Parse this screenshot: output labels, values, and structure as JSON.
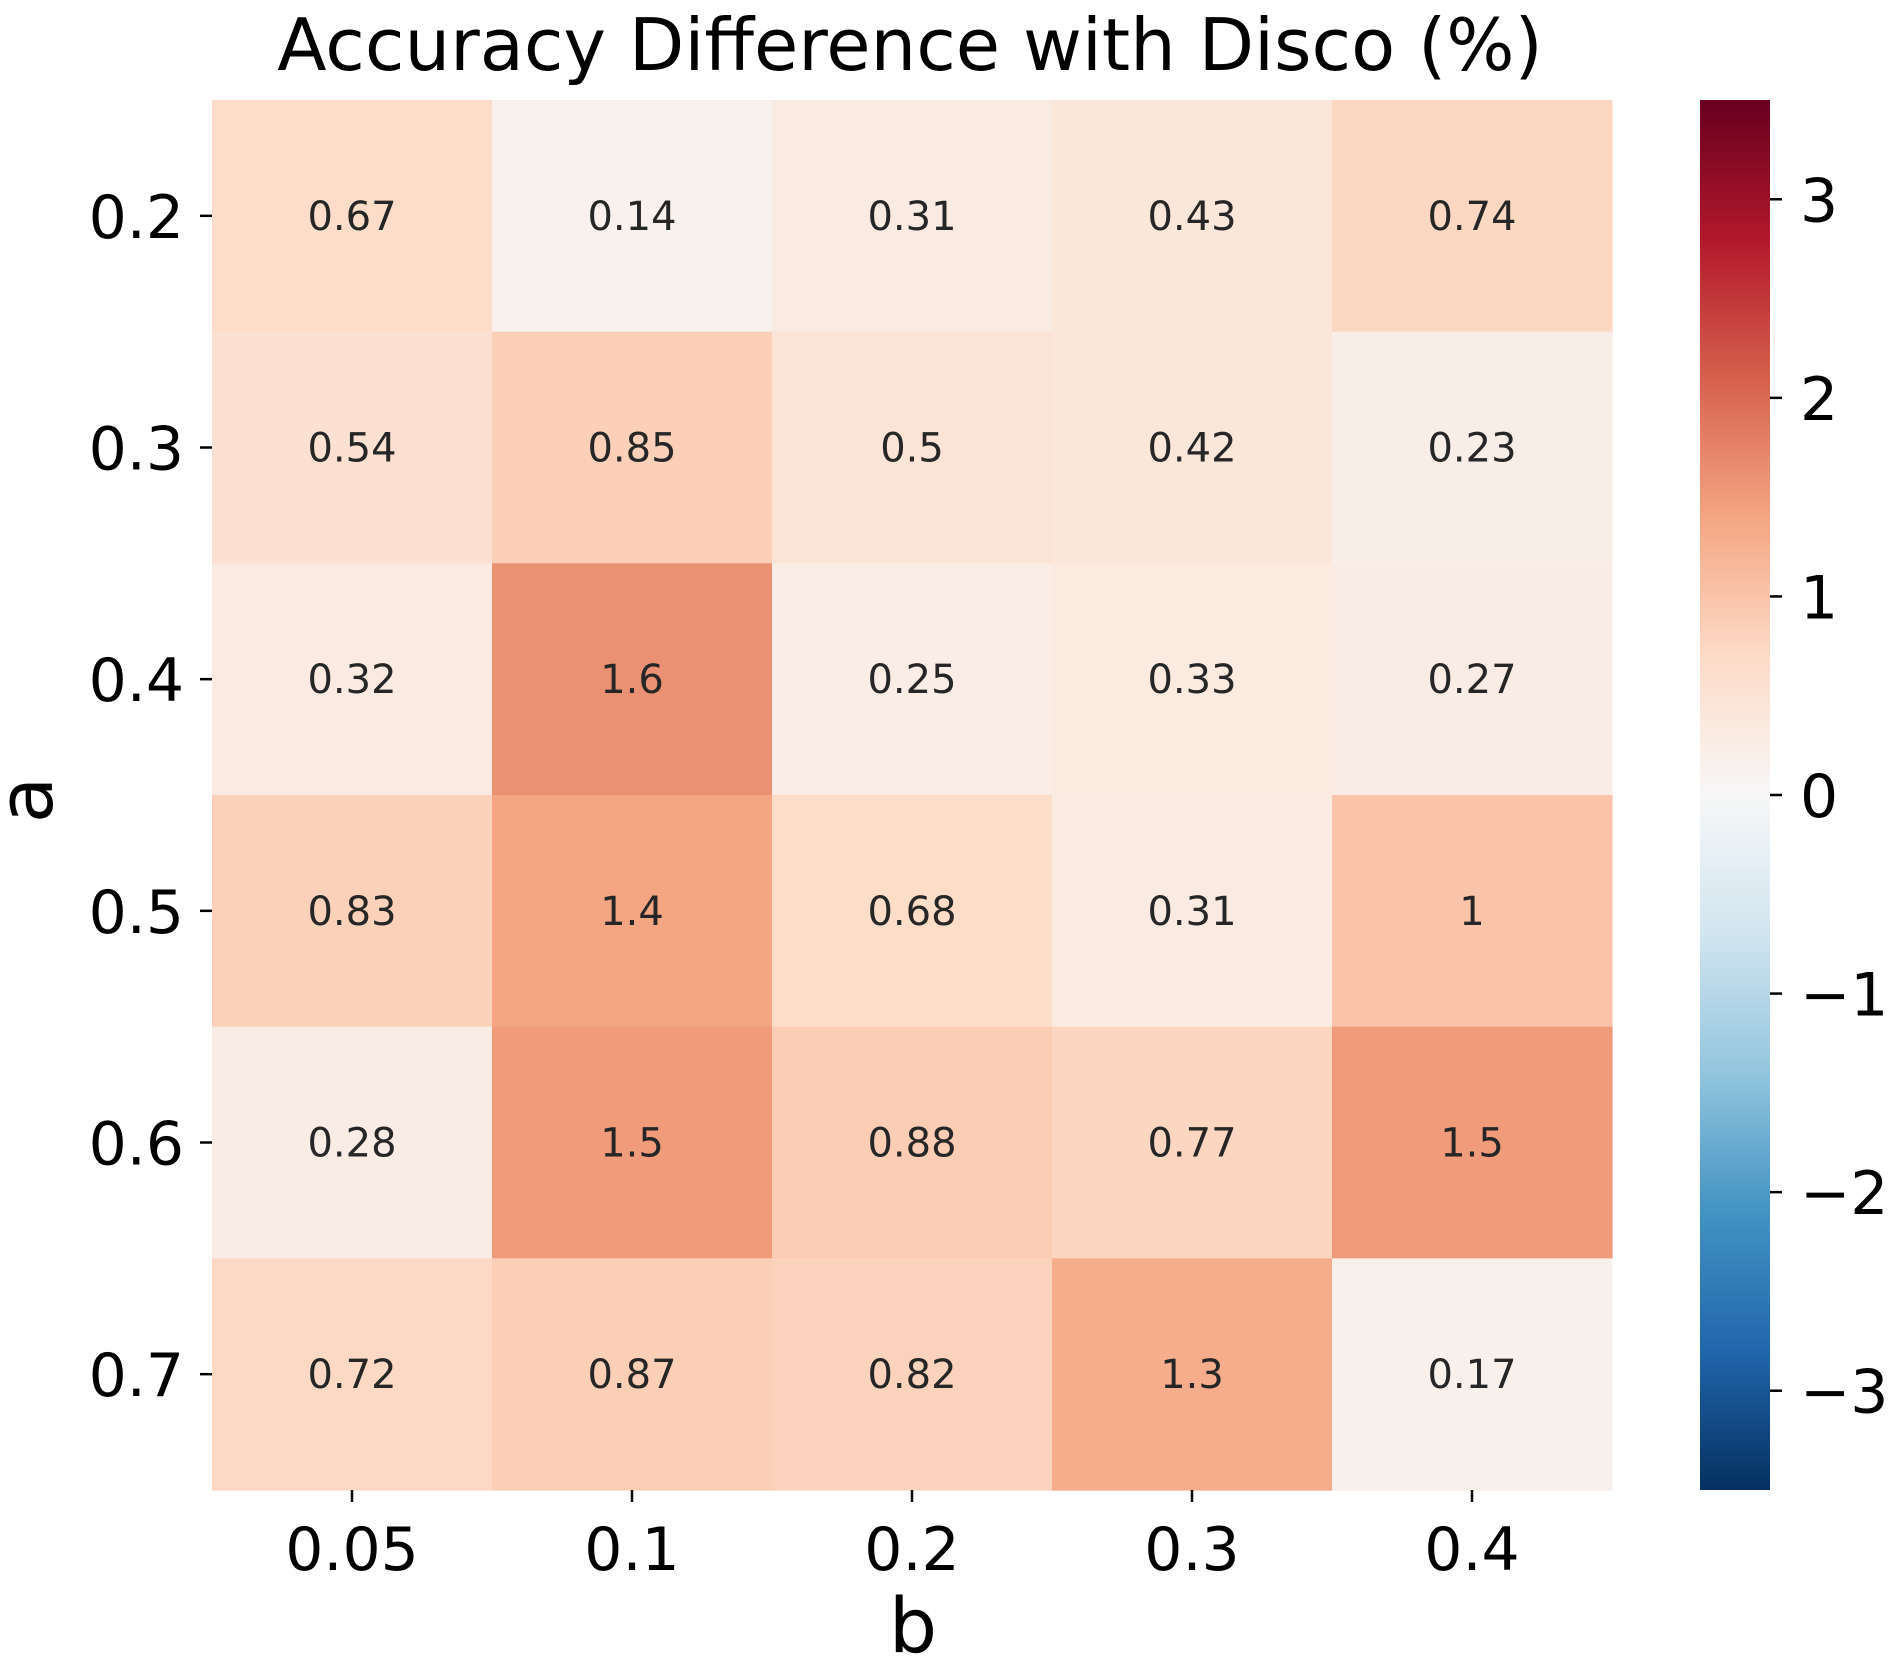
{
  "chart_data": {
    "type": "heatmap",
    "title": "Accuracy Difference with Disco (%)",
    "xlabel": "b",
    "ylabel": "a",
    "x_categories": [
      "0.05",
      "0.1",
      "0.2",
      "0.3",
      "0.4"
    ],
    "y_categories": [
      "0.2",
      "0.3",
      "0.4",
      "0.5",
      "0.6",
      "0.7"
    ],
    "values": [
      [
        0.67,
        0.14,
        0.31,
        0.43,
        0.74
      ],
      [
        0.54,
        0.85,
        0.5,
        0.42,
        0.23
      ],
      [
        0.32,
        1.6,
        0.25,
        0.33,
        0.27
      ],
      [
        0.83,
        1.4,
        0.68,
        0.31,
        1
      ],
      [
        0.28,
        1.5,
        0.88,
        0.77,
        1.5
      ],
      [
        0.72,
        0.87,
        0.82,
        1.3,
        0.17
      ]
    ],
    "cell_labels": [
      [
        "0.67",
        "0.14",
        "0.31",
        "0.43",
        "0.74"
      ],
      [
        "0.54",
        "0.85",
        "0.5",
        "0.42",
        "0.23"
      ],
      [
        "0.32",
        "1.6",
        "0.25",
        "0.33",
        "0.27"
      ],
      [
        "0.83",
        "1.4",
        "0.68",
        "0.31",
        "1"
      ],
      [
        "0.28",
        "1.5",
        "0.88",
        "0.77",
        "1.5"
      ],
      [
        "0.72",
        "0.87",
        "0.82",
        "1.3",
        "0.17"
      ]
    ],
    "colormap": "RdBu_r",
    "vmin": -3.5,
    "vmax": 3.5,
    "colorbar_ticks": [
      3,
      2,
      1,
      0,
      -1,
      -2,
      -3
    ],
    "colorbar_tick_labels": [
      "3",
      "2",
      "1",
      "0",
      "−1",
      "−2",
      "−3"
    ],
    "colorbar_position": "right",
    "colormap_stops": [
      "#053061",
      "#2166ac",
      "#4393c3",
      "#92c5de",
      "#d1e5f0",
      "#f7f7f7",
      "#fddbc7",
      "#f4a582",
      "#d6604d",
      "#b2182b",
      "#67001f"
    ],
    "grid": false
  }
}
